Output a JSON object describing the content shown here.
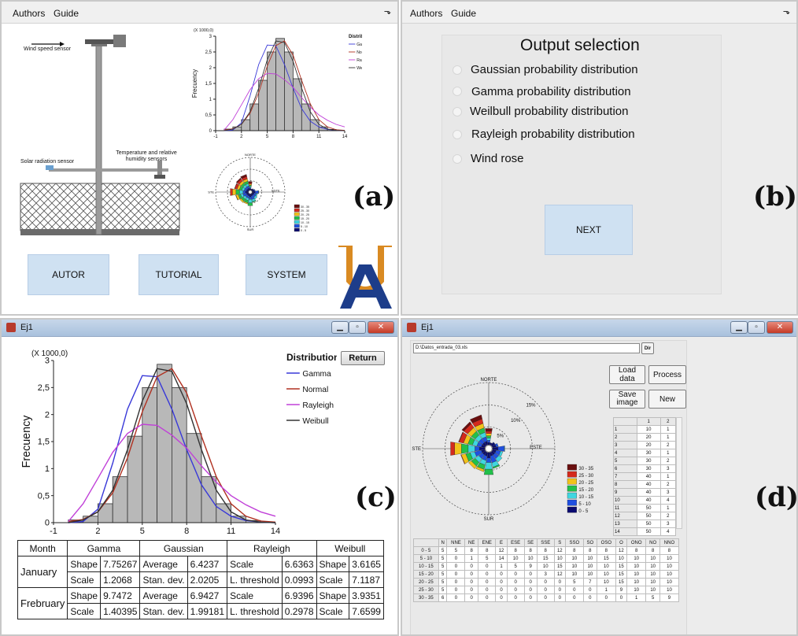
{
  "menu": {
    "authors": "Authors",
    "guide": "Guide",
    "pin": "⬎"
  },
  "panel_a": {
    "label": "(a)",
    "wind_sensor": "Wind speed sensor",
    "solar_sensor": "Solar radiation sensor",
    "temp_sensor_1": "Temperature and relative",
    "temp_sensor_2": "humidity sensors",
    "buttons": {
      "autor": "AUTOR",
      "tutorial": "TUTORIAL",
      "system": "SYSTEM"
    },
    "mini_chart": {
      "scale": "(X 1000,0)",
      "ylabel": "Frecuency",
      "legend_title": "Distribution",
      "legend": [
        "Gamma",
        "Normal",
        "Rayleigh",
        "Weibull"
      ],
      "xticks": [
        "-1",
        "2",
        "5",
        "8",
        "11",
        "14"
      ],
      "yticks": [
        "0",
        "0,5",
        "1",
        "1,5",
        "2",
        "2,5",
        "3"
      ]
    },
    "mini_rose": {
      "n": "NORTE",
      "w": "OESTE",
      "e": "ESTE",
      "s": "SUR"
    }
  },
  "panel_b": {
    "label": "(b)",
    "title": "Output selection",
    "options": [
      "Gaussian probability distribution",
      "Gamma probability distribution",
      "Weilbull probability distribution",
      "Rayleigh probability distribution",
      "Wind rose"
    ],
    "next": "NEXT"
  },
  "panel_c": {
    "window_title": "Ej1",
    "label": "(c)",
    "return": "Return",
    "table": {
      "head": [
        "Month",
        "Gamma",
        "Gaussian",
        "Rayleigh",
        "Weibull"
      ],
      "rows": [
        [
          "January",
          "Shape",
          "7.75267",
          "Average",
          "6.4237",
          "Scale",
          "6.6363",
          "Shape",
          "3.6165"
        ],
        [
          "",
          "Scale",
          "1.2068",
          "Stan. dev.",
          "2.0205",
          "L. threshold",
          "0.0993",
          "Scale",
          "7.1187"
        ],
        [
          "Frebruary",
          "Shape",
          "9.7472",
          "Average",
          "6.9427",
          "Scale",
          "6.9396",
          "Shape",
          "3.9351"
        ],
        [
          "",
          "Scale",
          "1.40395",
          "Stan. dev.",
          "1.99181",
          "L. threshold",
          "0.2978",
          "Scale",
          "7.6599"
        ]
      ]
    }
  },
  "chart_data": {
    "type": "bar",
    "scale_note": "(X 1000,0)",
    "ylabel": "Frecuency",
    "xticks": [
      "-1",
      "2",
      "5",
      "8",
      "11",
      "14"
    ],
    "yticks": [
      "0",
      "0,5",
      "1",
      "1,5",
      "2",
      "2,5",
      "3"
    ],
    "xlim": [
      -1,
      14
    ],
    "ylim": [
      0,
      3
    ],
    "bin_width": 1,
    "bins_start": [
      0,
      1,
      2,
      3,
      4,
      5,
      6,
      7,
      8,
      9,
      10,
      11,
      12
    ],
    "values": [
      0.05,
      0.12,
      0.35,
      0.85,
      1.6,
      2.5,
      2.93,
      2.5,
      1.65,
      0.85,
      0.35,
      0.12,
      0.04
    ],
    "legend_title": "Distribution",
    "series": [
      {
        "name": "Gamma",
        "color": "#3838d8",
        "x": [
          0,
          1,
          2,
          3,
          4,
          5,
          6,
          7,
          8,
          9,
          10,
          11,
          12,
          13,
          14
        ],
        "y": [
          0,
          0.02,
          0.25,
          1.1,
          2.1,
          2.72,
          2.7,
          2.1,
          1.35,
          0.7,
          0.3,
          0.12,
          0.04,
          0.01,
          0
        ]
      },
      {
        "name": "Normal",
        "color": "#b03020",
        "x": [
          0,
          1,
          2,
          3,
          4,
          5,
          6,
          7,
          8,
          9,
          10,
          11,
          12,
          13,
          14
        ],
        "y": [
          0.02,
          0.06,
          0.2,
          0.55,
          1.2,
          2.05,
          2.7,
          2.85,
          2.4,
          1.6,
          0.85,
          0.35,
          0.12,
          0.03,
          0.01
        ]
      },
      {
        "name": "Rayleigh",
        "color": "#c040d8",
        "x": [
          0,
          1,
          2,
          3,
          4,
          5,
          6,
          7,
          8,
          9,
          10,
          11,
          12,
          13,
          14
        ],
        "y": [
          0.02,
          0.35,
          0.82,
          1.3,
          1.65,
          1.82,
          1.8,
          1.62,
          1.38,
          1.05,
          0.75,
          0.5,
          0.33,
          0.2,
          0.12
        ]
      },
      {
        "name": "Weibull",
        "color": "#333333",
        "x": [
          0,
          1,
          2,
          3,
          4,
          5,
          6,
          7,
          8,
          9,
          10,
          11,
          12,
          13,
          14
        ],
        "y": [
          0,
          0.05,
          0.2,
          0.6,
          1.35,
          2.25,
          2.85,
          2.8,
          2.2,
          1.35,
          0.6,
          0.2,
          0.05,
          0.01,
          0
        ]
      }
    ]
  },
  "panel_d": {
    "window_title": "Ej1",
    "label": "(d)",
    "path_value": "D:\\Datos_entrada_03.xls",
    "dir": "Dir",
    "buttons": {
      "load": "Load data",
      "process": "Process",
      "save": "Save image",
      "new": "New"
    },
    "rose": {
      "n": "NORTE",
      "w": "OESTE",
      "e": "ESTE",
      "s": "SUR",
      "rings": [
        "5%",
        "10%",
        "15%"
      ],
      "legend": [
        {
          "label": "30 - 35",
          "color": "#6a0f0f"
        },
        {
          "label": "25 - 30",
          "color": "#d42a1c"
        },
        {
          "label": "20 - 25",
          "color": "#f2c21a"
        },
        {
          "label": "15 - 20",
          "color": "#22c04a"
        },
        {
          "label": "10 - 15",
          "color": "#3fd6e0"
        },
        {
          "label": "5 - 10",
          "color": "#1f4fe0"
        },
        {
          "label": "0 - 5",
          "color": "#0a0a70"
        }
      ]
    },
    "side_table": {
      "head": [
        "",
        "1",
        "2"
      ],
      "rows": [
        [
          "1",
          "10",
          "1"
        ],
        [
          "2",
          "20",
          "1"
        ],
        [
          "3",
          "20",
          "2"
        ],
        [
          "4",
          "30",
          "1"
        ],
        [
          "5",
          "30",
          "2"
        ],
        [
          "6",
          "30",
          "3"
        ],
        [
          "7",
          "40",
          "1"
        ],
        [
          "8",
          "40",
          "2"
        ],
        [
          "9",
          "40",
          "3"
        ],
        [
          "10",
          "40",
          "4"
        ],
        [
          "11",
          "50",
          "1"
        ],
        [
          "12",
          "50",
          "2"
        ],
        [
          "13",
          "50",
          "3"
        ],
        [
          "14",
          "50",
          "4"
        ]
      ]
    },
    "freq_table": {
      "head": [
        "",
        "N",
        "NNE",
        "NE",
        "ENE",
        "E",
        "ESE",
        "SE",
        "SSE",
        "S",
        "SSO",
        "SO",
        "OSO",
        "O",
        "ONO",
        "NO",
        "NNO"
      ],
      "rows": [
        [
          "0 - 5",
          "5",
          "5",
          "8",
          "8",
          "12",
          "8",
          "8",
          "8",
          "12",
          "8",
          "8",
          "8",
          "12",
          "8",
          "8",
          "8"
        ],
        [
          "5 - 10",
          "5",
          "0",
          "1",
          "5",
          "14",
          "10",
          "10",
          "15",
          "10",
          "10",
          "10",
          "15",
          "10",
          "10",
          "10",
          "10"
        ],
        [
          "10 - 15",
          "5",
          "0",
          "0",
          "0",
          "1",
          "5",
          "9",
          "10",
          "15",
          "10",
          "10",
          "10",
          "15",
          "10",
          "10",
          "10"
        ],
        [
          "15 - 20",
          "5",
          "0",
          "0",
          "0",
          "0",
          "0",
          "0",
          "3",
          "12",
          "10",
          "10",
          "10",
          "15",
          "10",
          "10",
          "10"
        ],
        [
          "20 - 25",
          "5",
          "0",
          "0",
          "0",
          "0",
          "0",
          "0",
          "0",
          "0",
          "5",
          "7",
          "10",
          "15",
          "10",
          "10",
          "10"
        ],
        [
          "25 - 30",
          "5",
          "0",
          "0",
          "0",
          "0",
          "0",
          "0",
          "0",
          "0",
          "0",
          "0",
          "1",
          "9",
          "10",
          "10",
          "10"
        ],
        [
          "30 - 35",
          "6",
          "0",
          "0",
          "0",
          "0",
          "0",
          "0",
          "0",
          "0",
          "0",
          "0",
          "0",
          "0",
          "1",
          "5",
          "9"
        ]
      ]
    }
  }
}
